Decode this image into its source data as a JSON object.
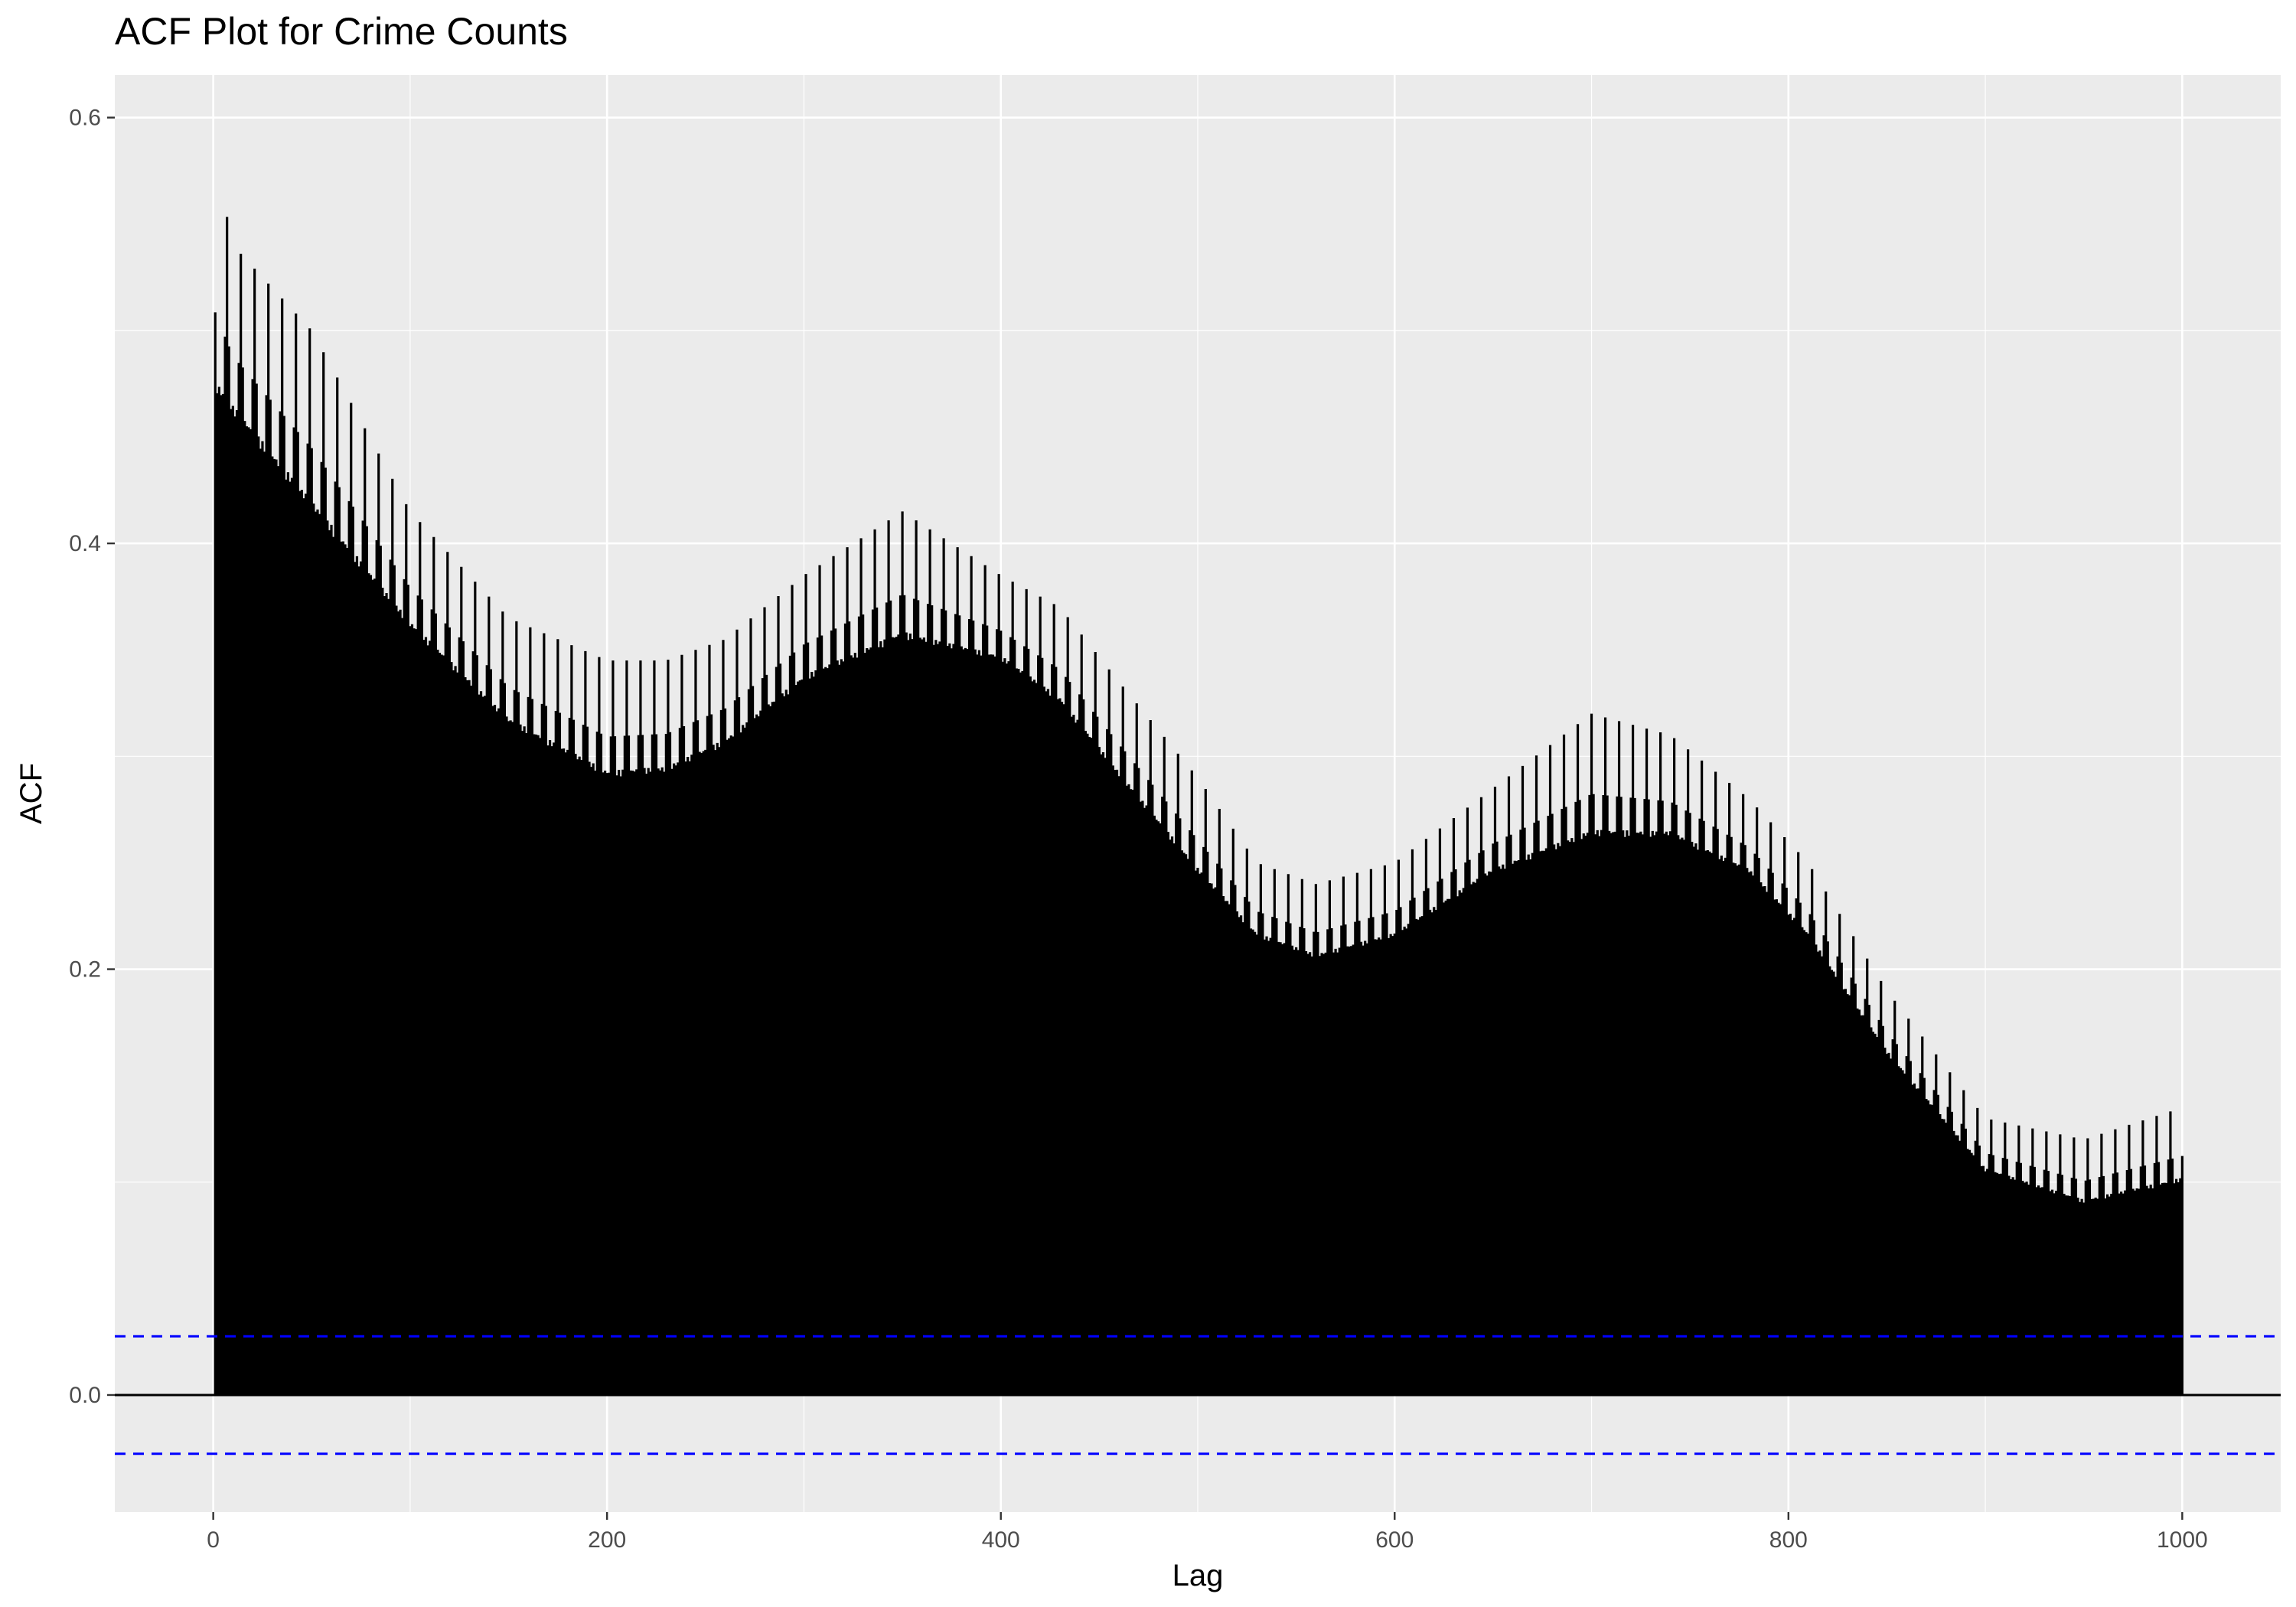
{
  "chart_data": {
    "type": "bar",
    "title": "ACF Plot for Crime Counts",
    "xlabel": "Lag",
    "ylabel": "ACF",
    "xlim": [
      -50,
      1050
    ],
    "ylim": [
      -0.055,
      0.62
    ],
    "x_ticks": [
      0,
      200,
      400,
      600,
      800,
      1000
    ],
    "x_tick_labels": [
      "0",
      "200",
      "400",
      "600",
      "800",
      "1000"
    ],
    "y_ticks": [
      0.0,
      0.2,
      0.4,
      0.6
    ],
    "y_tick_labels": [
      "0.0",
      "0.2",
      "0.4",
      "0.6"
    ],
    "grid": true,
    "lag_range": [
      1,
      1000
    ],
    "weekly_period": 7,
    "acf_envelope": {
      "lag": [
        1,
        10,
        50,
        100,
        150,
        200,
        230,
        260,
        300,
        350,
        400,
        430,
        460,
        500,
        530,
        560,
        600,
        650,
        700,
        740,
        780,
        810,
        850,
        900,
        950,
        1000
      ],
      "base": [
        0.47,
        0.46,
        0.415,
        0.36,
        0.315,
        0.29,
        0.292,
        0.305,
        0.335,
        0.355,
        0.345,
        0.325,
        0.29,
        0.245,
        0.215,
        0.205,
        0.215,
        0.245,
        0.262,
        0.262,
        0.245,
        0.215,
        0.16,
        0.105,
        0.09,
        0.1
      ],
      "peak": [
        0.58,
        0.54,
        0.5,
        0.415,
        0.365,
        0.345,
        0.345,
        0.355,
        0.385,
        0.415,
        0.385,
        0.37,
        0.335,
        0.29,
        0.25,
        0.24,
        0.25,
        0.285,
        0.32,
        0.31,
        0.28,
        0.25,
        0.19,
        0.13,
        0.12,
        0.135
      ]
    },
    "confidence_bounds": [
      0.0276,
      -0.0276
    ],
    "colors": {
      "bars": "#000000",
      "confidence": "#0000ff",
      "panel": "#ebebeb",
      "grid": "#ffffff",
      "zero_line": "#000000"
    }
  }
}
